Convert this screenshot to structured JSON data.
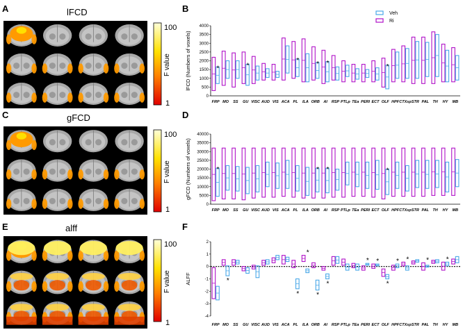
{
  "panels": {
    "A": {
      "label": "A",
      "title": "lFCD"
    },
    "B": {
      "label": "B"
    },
    "C": {
      "label": "C",
      "title": "gFCD"
    },
    "D": {
      "label": "D"
    },
    "E": {
      "label": "E",
      "title": "alff"
    },
    "F": {
      "label": "F"
    }
  },
  "colorbar": {
    "max": "100",
    "min": "1",
    "label": "F value"
  },
  "legend": {
    "veh": "Veh",
    "ri": "Ri",
    "veh_color": "#4aa8e8",
    "ri_color": "#b010c8"
  },
  "chart_data": [
    {
      "id": "B",
      "type": "box",
      "ylabel": "lFCD (Numbers of voxels)",
      "ylim": [
        0,
        4000
      ],
      "yticks": [
        "0",
        "500",
        "1000",
        "1500",
        "2000",
        "2500",
        "3000",
        "3500",
        "4000"
      ],
      "categories": [
        "FRP",
        "MO",
        "SS",
        "GU",
        "VISC",
        "AUD",
        "VIS",
        "ACA",
        "PL",
        "ILA",
        "ORB",
        "AI",
        "RSP",
        "PTLp",
        "TEa",
        "PERI",
        "ECT",
        "OLF",
        "HPF",
        "CTXsp",
        "STR",
        "PAL",
        "TH",
        "HY",
        "MB"
      ],
      "series": [
        {
          "name": "Ri",
          "boxes": [
            [
              300,
              2200
            ],
            [
              600,
              2550
            ],
            [
              500,
              2450
            ],
            [
              700,
              2500
            ],
            [
              700,
              2250
            ],
            [
              900,
              1850
            ],
            [
              900,
              1800
            ],
            [
              900,
              3300
            ],
            [
              1000,
              3100
            ],
            [
              800,
              3250
            ],
            [
              900,
              2800
            ],
            [
              700,
              2600
            ],
            [
              900,
              2300
            ],
            [
              800,
              2000
            ],
            [
              800,
              1800
            ],
            [
              800,
              1800
            ],
            [
              800,
              2000
            ],
            [
              500,
              2150
            ],
            [
              800,
              2650
            ],
            [
              800,
              2850
            ],
            [
              700,
              3350
            ],
            [
              700,
              3350
            ],
            [
              700,
              3650
            ],
            [
              800,
              2950
            ],
            [
              800,
              2750
            ]
          ]
        },
        {
          "name": "Veh",
          "boxes": [
            [
              700,
              1650
            ],
            [
              1000,
              2000
            ],
            [
              1000,
              2000
            ],
            [
              600,
              1800
            ],
            [
              900,
              1700
            ],
            [
              1050,
              1550
            ],
            [
              1050,
              1400
            ],
            [
              1300,
              2850
            ],
            [
              1100,
              2100
            ],
            [
              800,
              2400
            ],
            [
              1000,
              1900
            ],
            [
              800,
              1950
            ],
            [
              900,
              1650
            ],
            [
              1100,
              1750
            ],
            [
              950,
              1550
            ],
            [
              1050,
              1500
            ],
            [
              900,
              1600
            ],
            [
              400,
              1750
            ],
            [
              1000,
              2500
            ],
            [
              1000,
              2700
            ],
            [
              1000,
              3100
            ],
            [
              1100,
              3050
            ],
            [
              1100,
              3500
            ],
            [
              800,
              2600
            ],
            [
              900,
              2300
            ]
          ]
        }
      ],
      "star_labels": [
        "FRP",
        "PL",
        "GU",
        "ORB",
        "AI",
        "OLF"
      ],
      "star_text": "*"
    },
    {
      "id": "D",
      "type": "box",
      "ylabel": "gFCD (Numbers of voxels)",
      "ylim": [
        0,
        40000
      ],
      "yticks": [
        "0",
        "5000",
        "10000",
        "15000",
        "20000",
        "25000",
        "30000",
        "35000",
        "40000"
      ],
      "categories": [
        "FRP",
        "MO",
        "SS",
        "GU",
        "VISC",
        "AUD",
        "VIS",
        "ACA",
        "PL",
        "ILA",
        "ORB",
        "AI",
        "RSP",
        "PTLp",
        "TEa",
        "PERI",
        "ECT",
        "OLF",
        "HPF",
        "CTXsp",
        "STR",
        "PAL",
        "TH",
        "HY",
        "MB"
      ],
      "series": [
        {
          "name": "Ri",
          "boxes": [
            [
              2000,
              32000
            ],
            [
              3000,
              32000
            ],
            [
              3000,
              32000
            ],
            [
              2500,
              32000
            ],
            [
              3500,
              32000
            ],
            [
              4000,
              32000
            ],
            [
              4000,
              32000
            ],
            [
              4500,
              32000
            ],
            [
              4000,
              32000
            ],
            [
              3500,
              32000
            ],
            [
              3500,
              32000
            ],
            [
              3500,
              32000
            ],
            [
              4000,
              32000
            ],
            [
              4000,
              32000
            ],
            [
              4500,
              32000
            ],
            [
              4500,
              32000
            ],
            [
              4000,
              32000
            ],
            [
              3000,
              32000
            ],
            [
              4500,
              32000
            ],
            [
              4500,
              32000
            ],
            [
              4500,
              32000
            ],
            [
              4500,
              32000
            ],
            [
              5000,
              32000
            ],
            [
              5000,
              32000
            ],
            [
              5000,
              32000
            ]
          ]
        },
        {
          "name": "Veh",
          "boxes": [
            [
              4500,
              20500
            ],
            [
              8000,
              22000
            ],
            [
              7500,
              21500
            ],
            [
              6000,
              21000
            ],
            [
              7000,
              22000
            ],
            [
              10000,
              24000
            ],
            [
              9000,
              23500
            ],
            [
              9000,
              25000
            ],
            [
              7500,
              22000
            ],
            [
              5000,
              21000
            ],
            [
              7000,
              20500
            ],
            [
              6500,
              20500
            ],
            [
              8000,
              20000
            ],
            [
              11000,
              24000
            ],
            [
              10000,
              24000
            ],
            [
              9000,
              24000
            ],
            [
              8500,
              25000
            ],
            [
              5500,
              20000
            ],
            [
              9000,
              24000
            ],
            [
              7500,
              22000
            ],
            [
              9500,
              25000
            ],
            [
              9000,
              25000
            ],
            [
              9500,
              25000
            ],
            [
              7000,
              24000
            ],
            [
              10000,
              25500
            ]
          ]
        }
      ],
      "star_labels": [
        "FRP",
        "ORB",
        "AI",
        "OLF"
      ],
      "star_text": "*"
    },
    {
      "id": "F",
      "type": "box",
      "ylabel": "ALFF",
      "ylim": [
        -4,
        2
      ],
      "yticks": [
        "-4",
        "-3",
        "-2",
        "-1",
        "0",
        "1",
        "2"
      ],
      "categories": [
        "FRP",
        "MO",
        "SS",
        "GU",
        "VISC",
        "AUD",
        "VIS",
        "ACA",
        "PL",
        "ILA",
        "ORB",
        "AI",
        "RSP",
        "PTLp",
        "TEa",
        "PERI",
        "ECT",
        "OLF",
        "HPF",
        "CTXsp",
        "STR",
        "PAL",
        "TH",
        "HY",
        "MB"
      ],
      "series": [
        {
          "name": "Ri",
          "boxes": [
            [
              -2.6,
              -0.1
            ],
            [
              0.1,
              0.55
            ],
            [
              0.1,
              0.55
            ],
            [
              -0.35,
              0.0
            ],
            [
              -0.2,
              0.1
            ],
            [
              0.1,
              0.5
            ],
            [
              0.3,
              0.7
            ],
            [
              0.2,
              0.9
            ],
            [
              -0.1,
              0.5
            ],
            [
              0.4,
              0.9
            ],
            [
              -0.1,
              0.3
            ],
            [
              -0.3,
              0.0
            ],
            [
              0.1,
              0.8
            ],
            [
              0.1,
              0.6
            ],
            [
              -0.1,
              0.25
            ],
            [
              -0.3,
              0.05
            ],
            [
              -0.15,
              0.2
            ],
            [
              -0.8,
              -0.2
            ],
            [
              -0.3,
              0.1
            ],
            [
              0.05,
              0.35
            ],
            [
              0.2,
              0.45
            ],
            [
              -0.3,
              0.3
            ],
            [
              0.25,
              0.5
            ],
            [
              -0.3,
              0.35
            ],
            [
              0.2,
              0.6
            ]
          ]
        },
        {
          "name": "Veh",
          "boxes": [
            [
              -2.7,
              -1.6
            ],
            [
              -0.75,
              0.05
            ],
            [
              0.2,
              0.5
            ],
            [
              -0.55,
              -0.1
            ],
            [
              -0.9,
              0.05
            ],
            [
              0.2,
              0.55
            ],
            [
              0.55,
              0.9
            ],
            [
              0.4,
              0.75
            ],
            [
              -1.8,
              -1.0
            ],
            [
              -0.5,
              -0.2
            ],
            [
              -1.9,
              -1.1
            ],
            [
              -1.0,
              -0.6
            ],
            [
              0.25,
              0.8
            ],
            [
              -0.3,
              0.2
            ],
            [
              -0.3,
              0.2
            ],
            [
              0.1,
              0.25
            ],
            [
              0.05,
              0.2
            ],
            [
              -1.0,
              -0.65
            ],
            [
              -0.1,
              0.2
            ],
            [
              -0.3,
              0.05
            ],
            [
              0.35,
              0.55
            ],
            [
              -0.05,
              0.1
            ],
            [
              0.3,
              0.55
            ],
            [
              0.05,
              0.35
            ],
            [
              0.3,
              0.8
            ]
          ]
        }
      ],
      "star_labels": [
        "MO",
        "PL",
        "ILA",
        "ORB",
        "AI",
        "PERI",
        "ECT",
        "OLF",
        "HPF",
        "CTXsp",
        "PAL",
        "HY"
      ],
      "star_text": "*"
    }
  ]
}
